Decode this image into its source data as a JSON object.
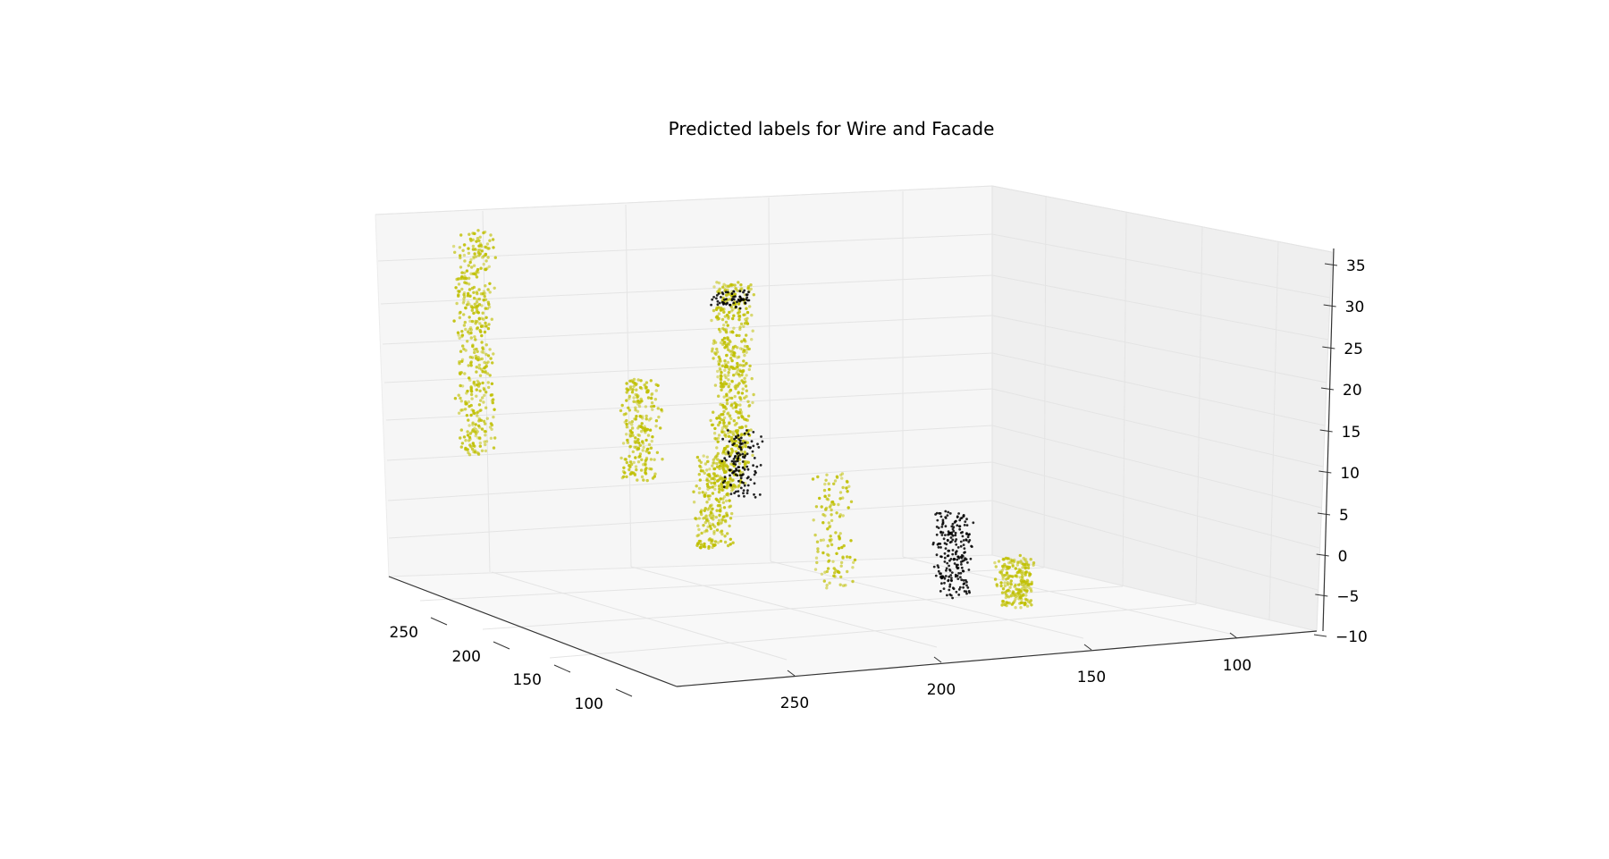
{
  "chart_data": {
    "type": "scatter",
    "projection": "3d",
    "title": "Predicted labels for Wire and Facade",
    "xlabel": "",
    "ylabel": "",
    "zlabel": "",
    "grid": true,
    "legend": "none",
    "x_ticks": [
      "250",
      "200",
      "150",
      "100"
    ],
    "y_ticks": [
      "250",
      "200",
      "150",
      "100"
    ],
    "z_ticks": [
      "35",
      "30",
      "25",
      "20",
      "15",
      "10",
      "5",
      "0",
      "−5",
      "−10"
    ],
    "xlim": [
      80,
      280
    ],
    "ylim": [
      80,
      280
    ],
    "zlim": [
      -10,
      35
    ],
    "series": [
      {
        "color": "#bfbf00",
        "clusters": [
          {
            "x": 258,
            "y": 262,
            "z": [
              6,
              33
            ],
            "count": 420
          },
          {
            "x": 262,
            "y": 205,
            "z": [
              2,
              14
            ],
            "count": 220
          },
          {
            "x": 268,
            "y": 172,
            "z": [
              0,
              25
            ],
            "count": 560
          },
          {
            "x": 212,
            "y": 205,
            "z": [
              -3,
              8
            ],
            "count": 220
          },
          {
            "x": 180,
            "y": 180,
            "z": [
              -6,
              8
            ],
            "count": 120
          },
          {
            "x": 138,
            "y": 140,
            "z": [
              -6,
              0
            ],
            "count": 200
          }
        ]
      },
      {
        "color": "#000000",
        "clusters": [
          {
            "x": 268,
            "y": 172,
            "z": [
              22,
              24
            ],
            "count": 60
          },
          {
            "x": 240,
            "y": 182,
            "z": [
              1,
              9
            ],
            "count": 120
          },
          {
            "x": 160,
            "y": 150,
            "z": [
              -6,
              4
            ],
            "count": 220
          }
        ]
      }
    ]
  }
}
